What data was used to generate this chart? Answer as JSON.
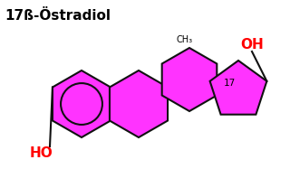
{
  "title": "17ß-Östradiol",
  "title_color": "#000000",
  "title_fontsize": 11,
  "fill_color": "#FF33FF",
  "stroke_color": "#111111",
  "stroke_width": 1.5,
  "bg_color": "#FFFFFF",
  "oh_color": "#FF0000",
  "ho_color": "#FF0000",
  "label_ch3": "CH₃",
  "label_17": "17",
  "label_oh": "OH",
  "label_ho": "HO",
  "figw": 3.2,
  "figh": 1.87,
  "dpi": 100
}
